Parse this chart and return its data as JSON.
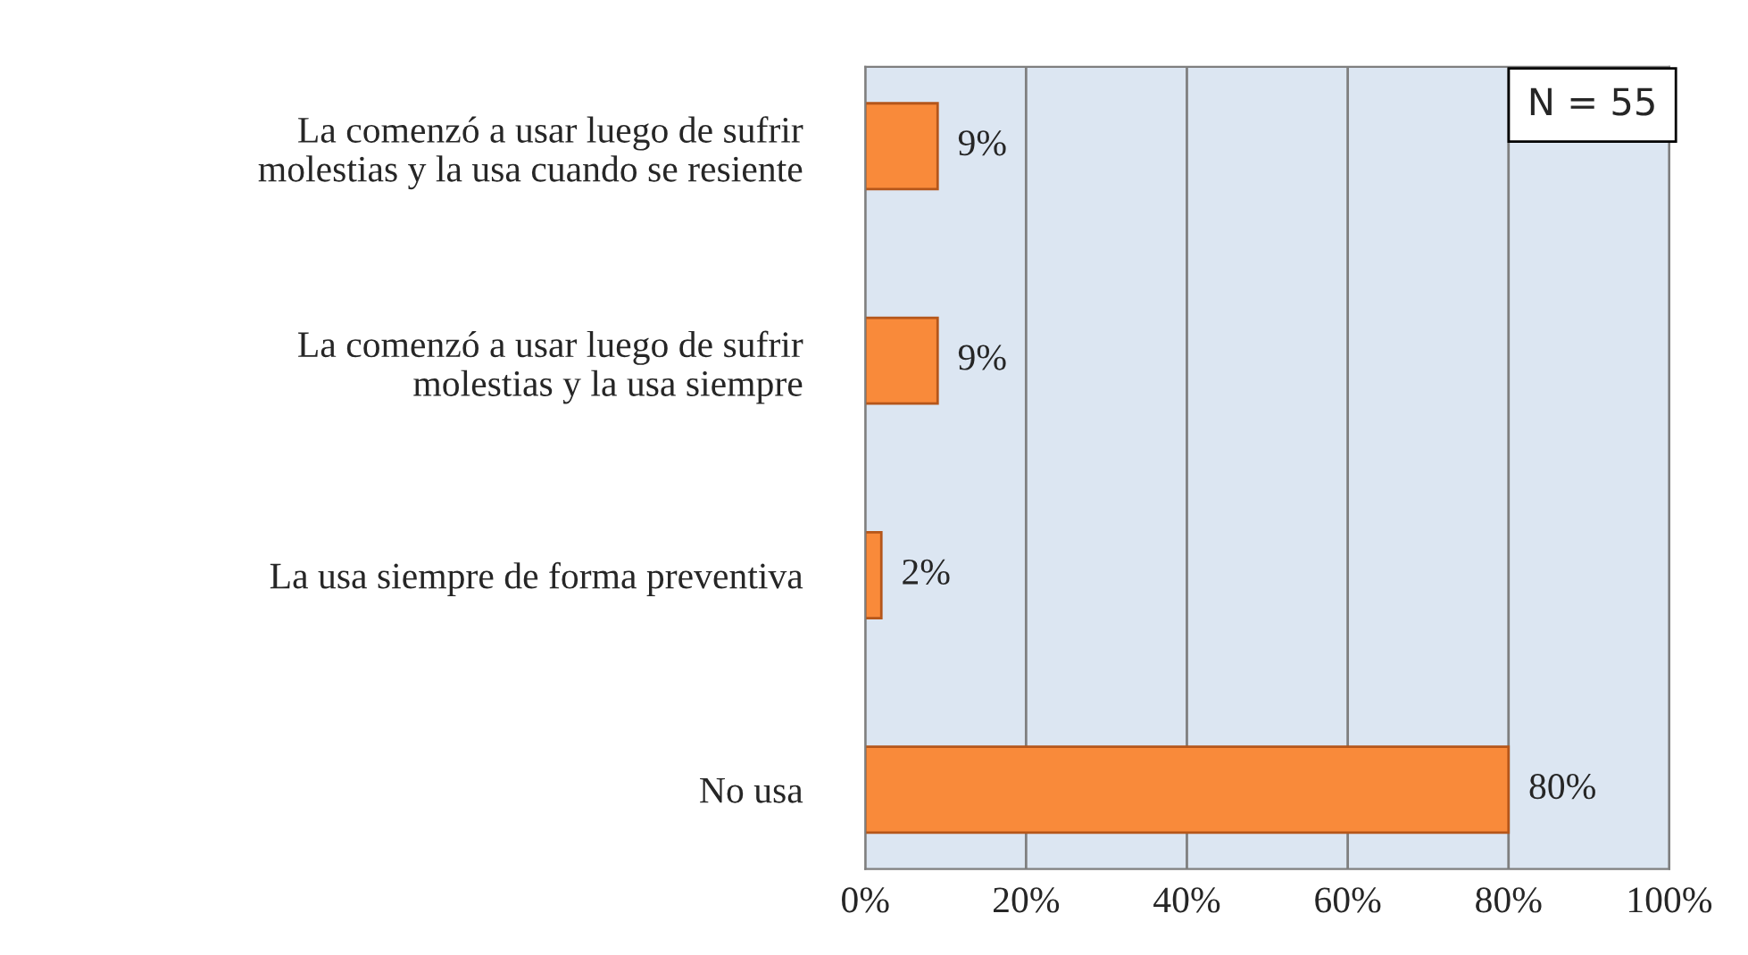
{
  "chart_data": {
    "type": "bar",
    "orientation": "horizontal",
    "categories": [
      "La comenzó a usar luego de sufrir\nmolestias y la usa cuando se resiente",
      "La comenzó a usar luego de sufrir\nmolestias y la usa siempre",
      "La usa siempre de forma preventiva",
      "No usa"
    ],
    "values": [
      9,
      9,
      2,
      80
    ],
    "value_labels": [
      "9%",
      "9%",
      "2%",
      "80%"
    ],
    "color": "#f98a3a",
    "xlim": [
      0,
      100
    ],
    "xticks": [
      {
        "value": 0,
        "label": "0%"
      },
      {
        "value": 20,
        "label": "20%"
      },
      {
        "value": 40,
        "label": "40%"
      },
      {
        "value": 60,
        "label": "60%"
      },
      {
        "value": 80,
        "label": "80%"
      },
      {
        "value": 100,
        "label": "100%"
      }
    ],
    "grid": "x",
    "legend": false,
    "annotations": [
      "N = 55"
    ]
  }
}
